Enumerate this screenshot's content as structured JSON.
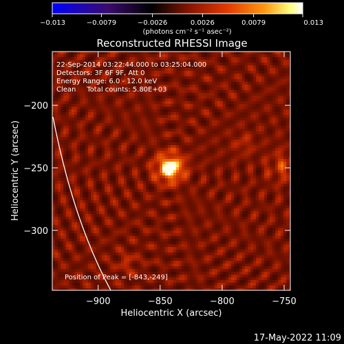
{
  "chart_data": {
    "type": "heatmap",
    "title": "Reconstructed RHESSI Image",
    "xlabel": "Heliocentric X (arcsec)",
    "ylabel": "Heliocentric Y (arcsec)",
    "xlim": [
      -937,
      -745
    ],
    "ylim": [
      -348,
      -157
    ],
    "x_ticks": [
      -900,
      -850,
      -800,
      -750
    ],
    "y_ticks": [
      -200,
      -250,
      -300
    ],
    "x_tick_labels": [
      "−900",
      "−850",
      "−800",
      "−750"
    ],
    "y_tick_labels": [
      "−200",
      "−250",
      "−300"
    ],
    "colorbar": {
      "min": -0.013,
      "max": 0.013,
      "tick_values": [
        -0.013,
        -0.0079,
        -0.0026,
        0.0026,
        0.0079,
        0.013
      ],
      "tick_labels": [
        "−0.013",
        "−0.0079",
        "−0.0026",
        "0.0026",
        "0.0079",
        "0.013"
      ],
      "units_label": "(photons cm⁻² s⁻¹ asec⁻²)",
      "colors": [
        "#0000ff",
        "#3b0b6e",
        "#000000",
        "#8a1500",
        "#e23a00",
        "#ff9a10",
        "#ffff80",
        "#ffffff"
      ]
    },
    "annotations": [
      "22-Sep-2014 03:22:44.000 to 03:25:04.000",
      "Detectors: 3F 6F 9F, Att 0",
      "Energy Range: 6.0 - 12.0 keV",
      "Clean     Total counts: 5.80E+03"
    ],
    "peak": {
      "x": -843,
      "y": -249,
      "label": "Position of Peak = [-843,-249]"
    },
    "limb_color": "#ffffff"
  },
  "footer": {
    "timestamp": "17-May-2022 11:09"
  }
}
